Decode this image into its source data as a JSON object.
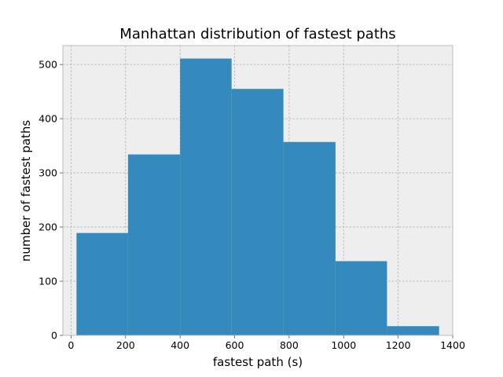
{
  "chart_data": {
    "type": "bar",
    "title": "Manhattan distribution of fastest paths",
    "xlabel": "fastest path (s)",
    "ylabel": "number of fastest paths",
    "xlim": [
      -30,
      1400
    ],
    "ylim": [
      0,
      535
    ],
    "xticks": [
      0,
      200,
      400,
      600,
      800,
      1000,
      1200,
      1400
    ],
    "yticks": [
      0,
      100,
      200,
      300,
      400,
      500
    ],
    "grid": true,
    "bins": [
      {
        "start": 20,
        "end": 209,
        "value": 189
      },
      {
        "start": 209,
        "end": 400,
        "value": 334
      },
      {
        "start": 400,
        "end": 589,
        "value": 511
      },
      {
        "start": 589,
        "end": 779,
        "value": 455
      },
      {
        "start": 779,
        "end": 970,
        "value": 357
      },
      {
        "start": 970,
        "end": 1159,
        "value": 137
      },
      {
        "start": 1159,
        "end": 1350,
        "value": 17
      }
    ],
    "bar_color": "#348ABD",
    "plot_background": "#EEEEEE",
    "frame_color": "#BCBCBC"
  }
}
